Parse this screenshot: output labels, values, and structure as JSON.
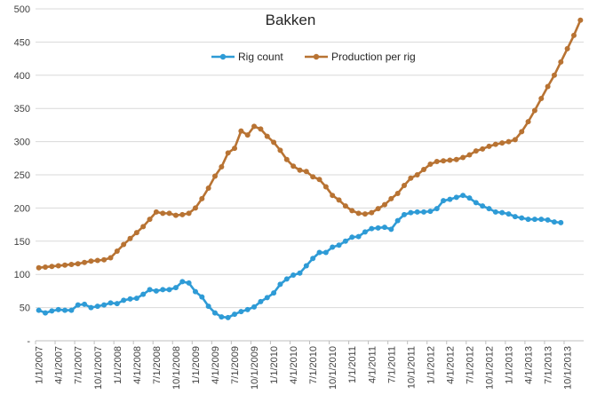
{
  "chart_data": {
    "type": "line",
    "title": "Bakken",
    "xlabel": "",
    "ylabel": "",
    "ylim": [
      0,
      500
    ],
    "y_ticks": [
      "-",
      "50",
      "100",
      "150",
      "200",
      "250",
      "300",
      "350",
      "400",
      "450",
      "500"
    ],
    "x_tick_labels": [
      "1/1/2007",
      "4/1/2007",
      "7/1/2007",
      "10/1/2007",
      "1/1/2008",
      "4/1/2008",
      "7/1/2008",
      "10/1/2008",
      "1/1/2009",
      "4/1/2009",
      "7/1/2009",
      "10/1/2009",
      "1/1/2010",
      "4/1/2010",
      "7/1/2010",
      "10/1/2010",
      "1/1/2011",
      "4/1/2011",
      "7/1/2011",
      "10/1/2011",
      "1/1/2012",
      "4/1/2012",
      "7/1/2012",
      "10/1/2012",
      "1/1/2013",
      "4/1/2013",
      "7/1/2013",
      "10/1/2013"
    ],
    "x_start": "2007-01",
    "x_interval": "monthly",
    "grid": "horizontal",
    "legend_position": "top",
    "series": [
      {
        "name": "Rig count",
        "color": "#2E9BD6",
        "values": [
          46,
          42,
          45,
          47,
          46,
          46,
          54,
          55,
          50,
          52,
          54,
          57,
          56,
          61,
          63,
          64,
          70,
          77,
          75,
          77,
          77,
          80,
          89,
          87,
          74,
          66,
          52,
          42,
          36,
          35,
          40,
          44,
          47,
          51,
          59,
          65,
          72,
          85,
          93,
          99,
          102,
          113,
          124,
          133,
          133,
          141,
          144,
          150,
          156,
          157,
          164,
          169,
          170,
          171,
          168,
          181,
          190,
          193,
          194,
          194,
          195,
          199,
          211,
          213,
          216,
          219,
          215,
          208,
          203,
          199,
          194,
          193,
          191,
          187,
          185,
          183,
          183,
          183,
          182,
          179,
          178
        ]
      },
      {
        "name": "Production per rig",
        "color": "#B87333",
        "values": [
          110,
          111,
          112,
          113,
          114,
          115,
          116,
          118,
          120,
          121,
          122,
          125,
          135,
          145,
          154,
          163,
          172,
          183,
          194,
          192,
          192,
          189,
          190,
          192,
          200,
          214,
          230,
          248,
          262,
          283,
          290,
          316,
          310,
          323,
          319,
          308,
          299,
          287,
          273,
          263,
          257,
          255,
          247,
          243,
          232,
          219,
          212,
          203,
          196,
          192,
          191,
          193,
          199,
          205,
          214,
          222,
          234,
          245,
          250,
          258,
          266,
          270,
          271,
          272,
          273,
          276,
          280,
          286,
          289,
          293,
          296,
          298,
          300,
          303,
          315,
          330,
          347,
          365,
          383,
          400,
          420,
          440,
          460,
          483
        ]
      }
    ]
  }
}
